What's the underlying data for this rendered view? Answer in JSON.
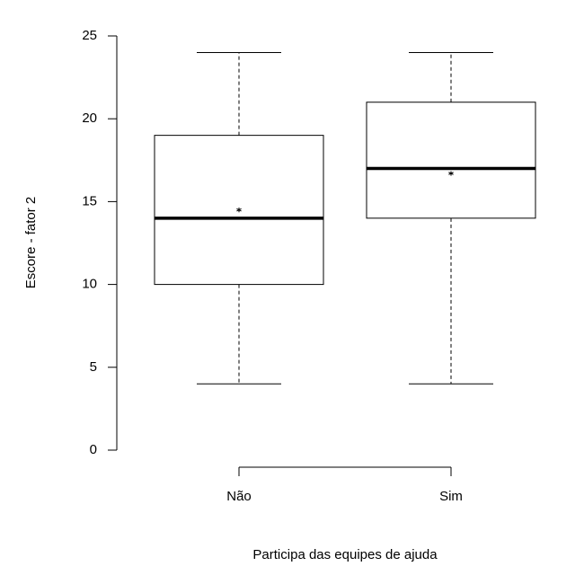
{
  "chart_data": {
    "type": "box",
    "x_label": "Participa das equipes de ajuda",
    "y_label": "Escore - fator 2",
    "categories": [
      "Não",
      "Sim"
    ],
    "boxes": [
      {
        "min": 4,
        "q1": 10,
        "median": 14,
        "q3": 19,
        "max": 24,
        "mean": 14.5
      },
      {
        "min": 4,
        "q1": 14,
        "median": 17,
        "q3": 21,
        "max": 24,
        "mean": 16.7
      }
    ],
    "color": "#000000",
    "ylim": [
      0,
      25
    ],
    "yticks": [
      0,
      5,
      10,
      15,
      20,
      25
    ]
  }
}
